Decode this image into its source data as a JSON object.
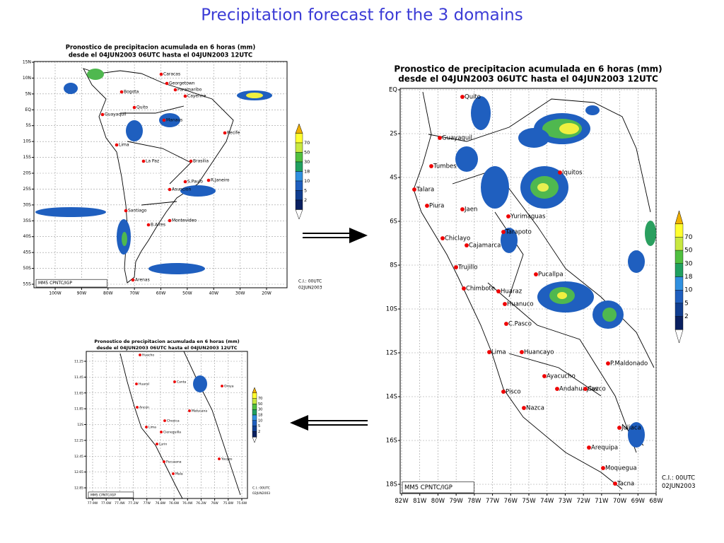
{
  "title": "Precipitation  forecast for the 3 domains",
  "maps": [
    {
      "title": [
        "Pronostico de precipitacion acumulada en 6 horas (mm)",
        "desde el 04JUN2003 06UTC hasta el 04JUN2003 12UTC"
      ],
      "lat_labels": [
        "15N",
        "10N",
        "5N",
        "EQ",
        "5S",
        "10S",
        "15S",
        "20S",
        "25S",
        "30S",
        "35S",
        "40S",
        "45S",
        "50S",
        "55S"
      ],
      "lon_labels": [
        "100W",
        "90W",
        "80W",
        "70W",
        "60W",
        "50W",
        "40W",
        "30W",
        "20W"
      ],
      "legend": [
        70,
        50,
        30,
        18,
        10,
        5,
        2
      ],
      "cities": [
        "Caracas",
        "Georgetown",
        "Paramaribo",
        "Cayenne",
        "Bogota",
        "Quito",
        "Guayaquil",
        "Manaus",
        "Recife",
        "Lima",
        "La Paz",
        "Brasilia",
        "S.Paulo",
        "R.Janeiro",
        "Asuncion",
        "Santiago",
        "B.Aires",
        "Montevideo",
        "Arenas"
      ],
      "footer": "MM5  CPNTC/IGP",
      "ci": [
        "C.I.: 00UTC",
        "02JUN2003"
      ]
    },
    {
      "title": [
        "Pronostico de precipitacion acumulada en 6 horas (mm)",
        "desde el 04JUN2003 06UTC hasta el 04JUN2003 12UTC"
      ],
      "lat_labels": [
        "EQ",
        "2S",
        "4S",
        "6S",
        "8S",
        "10S",
        "12S",
        "14S",
        "16S",
        "18S"
      ],
      "lon_labels": [
        "82W",
        "81W",
        "80W",
        "79W",
        "78W",
        "77W",
        "76W",
        "75W",
        "74W",
        "73W",
        "72W",
        "71W",
        "70W",
        "69W",
        "68W"
      ],
      "legend": [
        70,
        50,
        30,
        18,
        10,
        5,
        2
      ],
      "cities": [
        "Quito",
        "Guayaquil",
        "Tumbes",
        "Talara",
        "Piura",
        "Jaen",
        "Yurimaguas",
        "Iquitos",
        "Tarapoto",
        "Chiclayo",
        "Cajamarca",
        "Trujillo",
        "Chimbote",
        "Huaraz",
        "Pucallpa",
        "Huanuco",
        "C.Pasco",
        "Lima",
        "Huancayo",
        "Ayacucho",
        "Andahuaylas",
        "Cuzco",
        "Pisco",
        "Nazca",
        "P.Maldonado",
        "Juliaca",
        "Arequipa",
        "Moquegua",
        "Tacna"
      ],
      "footer": "MM5  CPNTC/IGP",
      "ci": [
        "C.I.: 00UTC",
        "02JUN2003"
      ]
    },
    {
      "title": [
        "Pronostico de precipitacion acumulada en 6 horas (mm)",
        "desde el 04JUN2003 06UTC hasta el 04JUN2003 12UTC"
      ],
      "lat_labels": [
        "11.25",
        "11.45",
        "11.65",
        "11.85",
        "12S",
        "12.25",
        "12.45",
        "12.65",
        "12.85"
      ],
      "lon_labels": [
        "77.9W",
        "77.6W",
        "77.4W",
        "77.2W",
        "77W",
        "76.8W",
        "76.6W",
        "76.4W",
        "76.2W",
        "76W",
        "75.8W",
        "75.6W"
      ],
      "legend": [
        70,
        50,
        30,
        18,
        10,
        5,
        2
      ],
      "cities": [
        "Huacho",
        "Huaral",
        "Canta",
        "Oroya",
        "Ancon",
        "Matucana",
        "Chosica",
        "Lima",
        "Cieneguilla",
        "Lurin",
        "Pucusana",
        "Yauyos",
        "Mala"
      ],
      "footer": "MM5  CPNTC/IGP",
      "ci": [
        "C.I.: 00UTC",
        "02JUN2003"
      ]
    }
  ]
}
